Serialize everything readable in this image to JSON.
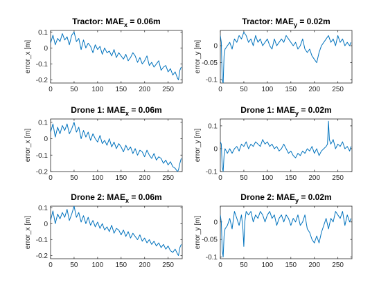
{
  "figure": {
    "background": "#ffffff",
    "line_color": "#0072bd",
    "axis_color": "#262626"
  },
  "chart_data": [
    {
      "type": "line",
      "title": {
        "prefix": "Tractor: MAE",
        "sub": "x",
        "suffix": " = 0.06m"
      },
      "ylabel": "error_x [m]",
      "xlim": [
        0,
        280
      ],
      "ylim": [
        -0.22,
        0.11
      ],
      "xticks": [
        0,
        50,
        100,
        150,
        200,
        250
      ],
      "yticks": [
        0.1,
        0,
        -0.1,
        -0.2
      ],
      "grid": false,
      "series": [
        {
          "x": [
            0,
            5,
            10,
            15,
            20,
            25,
            30,
            35,
            40,
            45,
            50,
            55,
            60,
            65,
            70,
            75,
            80,
            85,
            90,
            95,
            100,
            105,
            110,
            115,
            120,
            125,
            130,
            135,
            140,
            145,
            150,
            155,
            160,
            165,
            170,
            175,
            180,
            185,
            190,
            195,
            200,
            205,
            210,
            215,
            220,
            225,
            230,
            235,
            240,
            245,
            250,
            255,
            260,
            265,
            270,
            272,
            275,
            278
          ],
          "y": [
            0.03,
            0.08,
            0.02,
            0.06,
            0.04,
            0.09,
            0.05,
            0.07,
            0.02,
            0.08,
            0.1,
            0.04,
            0.06,
            -0.01,
            0.05,
            0.0,
            0.03,
            0.01,
            -0.03,
            0.02,
            -0.01,
            0.01,
            -0.04,
            0.0,
            -0.03,
            -0.02,
            -0.05,
            -0.01,
            -0.06,
            -0.03,
            -0.05,
            -0.07,
            -0.04,
            -0.08,
            -0.06,
            -0.03,
            -0.05,
            -0.09,
            -0.06,
            -0.1,
            -0.08,
            -0.05,
            -0.11,
            -0.09,
            -0.12,
            -0.1,
            -0.08,
            -0.14,
            -0.12,
            -0.11,
            -0.15,
            -0.13,
            -0.17,
            -0.15,
            -0.19,
            -0.2,
            -0.14,
            -0.12
          ]
        }
      ]
    },
    {
      "type": "line",
      "title": {
        "prefix": "Tractor: MAE",
        "sub": "y",
        "suffix": " = 0.02m"
      },
      "ylabel": "error_y [m]",
      "xlim": [
        0,
        280
      ],
      "ylim": [
        -0.11,
        0.045
      ],
      "xticks": [
        0,
        50,
        100,
        150,
        200,
        250
      ],
      "yticks": [
        0,
        -0.05,
        -0.1
      ],
      "grid": false,
      "series": [
        {
          "x": [
            0,
            2,
            4,
            6,
            8,
            10,
            15,
            20,
            25,
            30,
            35,
            40,
            45,
            50,
            55,
            60,
            65,
            70,
            75,
            80,
            85,
            90,
            95,
            100,
            105,
            110,
            115,
            120,
            125,
            130,
            135,
            140,
            145,
            150,
            155,
            160,
            165,
            170,
            175,
            180,
            185,
            190,
            195,
            200,
            205,
            210,
            215,
            220,
            225,
            230,
            235,
            240,
            245,
            250,
            255,
            260,
            265,
            270,
            275,
            278
          ],
          "y": [
            0.03,
            0.01,
            -0.1,
            -0.11,
            -0.03,
            -0.01,
            0.0,
            0.01,
            -0.01,
            0.02,
            0.01,
            0.03,
            0.02,
            0.04,
            0.03,
            0.01,
            0.02,
            0.0,
            0.03,
            0.01,
            0.02,
            0.0,
            0.01,
            0.02,
            0.0,
            -0.01,
            0.02,
            0.0,
            0.01,
            0.02,
            0.01,
            0.03,
            0.02,
            0.01,
            0.0,
            0.01,
            -0.01,
            0.0,
            0.02,
            -0.01,
            -0.02,
            -0.01,
            -0.03,
            -0.04,
            -0.05,
            -0.02,
            0.0,
            0.01,
            0.02,
            0.03,
            0.01,
            0.02,
            0.0,
            0.03,
            0.01,
            0.02,
            0.0,
            0.01,
            0.0,
            0.01
          ]
        }
      ]
    },
    {
      "type": "line",
      "title": {
        "prefix": "Drone 1: MAE",
        "sub": "x",
        "suffix": " = 0.06m"
      },
      "ylabel": "error_x [m]",
      "xlim": [
        0,
        280
      ],
      "ylim": [
        -0.2,
        0.12
      ],
      "xticks": [
        0,
        50,
        100,
        150,
        200,
        250
      ],
      "yticks": [
        0.1,
        0,
        -0.1,
        -0.2
      ],
      "grid": false,
      "series": [
        {
          "x": [
            0,
            5,
            10,
            15,
            20,
            25,
            30,
            35,
            40,
            45,
            50,
            55,
            60,
            65,
            70,
            75,
            80,
            85,
            90,
            95,
            100,
            105,
            110,
            115,
            120,
            125,
            130,
            135,
            140,
            145,
            150,
            155,
            160,
            165,
            170,
            175,
            180,
            185,
            190,
            195,
            200,
            205,
            210,
            215,
            220,
            225,
            230,
            235,
            240,
            245,
            250,
            255,
            260,
            265,
            270,
            272,
            275,
            278
          ],
          "y": [
            0.04,
            0.09,
            0.01,
            0.07,
            0.03,
            0.08,
            0.05,
            0.09,
            0.03,
            0.06,
            0.1,
            0.04,
            0.07,
            0.0,
            0.05,
            0.01,
            0.04,
            -0.01,
            0.03,
            0.0,
            -0.02,
            0.02,
            -0.03,
            -0.01,
            -0.04,
            0.0,
            -0.05,
            -0.02,
            -0.06,
            -0.03,
            -0.05,
            -0.08,
            -0.04,
            -0.07,
            -0.05,
            -0.09,
            -0.06,
            -0.1,
            -0.07,
            -0.08,
            -0.11,
            -0.07,
            -0.1,
            -0.12,
            -0.09,
            -0.13,
            -0.11,
            -0.12,
            -0.15,
            -0.13,
            -0.16,
            -0.14,
            -0.17,
            -0.18,
            -0.2,
            -0.19,
            -0.15,
            -0.12
          ]
        }
      ]
    },
    {
      "type": "line",
      "title": {
        "prefix": "Drone 1: MAE",
        "sub": "y",
        "suffix": " = 0.02m"
      },
      "ylabel": "error_y [m]",
      "xlim": [
        0,
        280
      ],
      "ylim": [
        -0.1,
        0.13
      ],
      "xticks": [
        0,
        50,
        100,
        150,
        200,
        250
      ],
      "yticks": [
        0.1,
        0,
        -0.1
      ],
      "grid": false,
      "series": [
        {
          "x": [
            0,
            2,
            4,
            6,
            8,
            10,
            15,
            20,
            25,
            30,
            35,
            40,
            45,
            50,
            55,
            60,
            65,
            70,
            75,
            80,
            85,
            90,
            95,
            100,
            105,
            110,
            115,
            120,
            125,
            130,
            135,
            140,
            145,
            150,
            155,
            160,
            165,
            170,
            175,
            180,
            185,
            190,
            195,
            200,
            205,
            210,
            215,
            220,
            225,
            228,
            230,
            232,
            235,
            240,
            245,
            250,
            255,
            260,
            265,
            270,
            275,
            278
          ],
          "y": [
            0.03,
            0.02,
            -0.08,
            -0.1,
            -0.03,
            0.0,
            -0.02,
            0.0,
            -0.02,
            0.0,
            0.01,
            -0.01,
            0.02,
            0.01,
            0.03,
            0.0,
            0.02,
            0.01,
            0.03,
            0.02,
            0.01,
            0.04,
            0.02,
            0.03,
            0.01,
            0.02,
            0.0,
            0.01,
            -0.01,
            0.0,
            0.02,
            0.0,
            -0.02,
            -0.01,
            -0.03,
            -0.04,
            -0.02,
            -0.03,
            -0.01,
            -0.02,
            0.0,
            -0.01,
            0.01,
            -0.02,
            0.0,
            -0.03,
            -0.01,
            0.0,
            0.01,
            0.02,
            0.12,
            0.04,
            0.02,
            0.04,
            0.0,
            0.02,
            0.01,
            0.03,
            0.0,
            0.01,
            -0.01,
            0.01
          ]
        }
      ]
    },
    {
      "type": "line",
      "title": {
        "prefix": "Drone 2: MAE",
        "sub": "x",
        "suffix": " = 0.06m"
      },
      "ylabel": "error_x [m]",
      "xlim": [
        0,
        280
      ],
      "ylim": [
        -0.22,
        0.11
      ],
      "xticks": [
        0,
        50,
        100,
        150,
        200,
        250
      ],
      "yticks": [
        0.1,
        0,
        -0.1,
        -0.2
      ],
      "grid": false,
      "series": [
        {
          "x": [
            0,
            5,
            10,
            15,
            20,
            25,
            30,
            35,
            40,
            45,
            50,
            55,
            60,
            65,
            70,
            75,
            80,
            85,
            90,
            95,
            100,
            105,
            110,
            115,
            120,
            125,
            130,
            135,
            140,
            145,
            150,
            155,
            160,
            165,
            170,
            175,
            180,
            185,
            190,
            195,
            200,
            205,
            210,
            215,
            220,
            225,
            230,
            235,
            240,
            245,
            250,
            255,
            260,
            265,
            270,
            272,
            275,
            278
          ],
          "y": [
            0.02,
            0.08,
            0.0,
            0.06,
            0.03,
            0.07,
            0.04,
            0.09,
            0.02,
            0.06,
            0.11,
            0.04,
            0.07,
            0.01,
            0.05,
            0.0,
            0.04,
            -0.01,
            0.02,
            -0.02,
            0.01,
            -0.03,
            0.0,
            -0.04,
            -0.02,
            -0.05,
            -0.01,
            -0.06,
            -0.03,
            -0.04,
            -0.07,
            -0.04,
            -0.08,
            -0.05,
            -0.09,
            -0.06,
            -0.08,
            -0.1,
            -0.07,
            -0.11,
            -0.09,
            -0.12,
            -0.1,
            -0.13,
            -0.11,
            -0.14,
            -0.12,
            -0.15,
            -0.13,
            -0.16,
            -0.14,
            -0.17,
            -0.18,
            -0.16,
            -0.19,
            -0.2,
            -0.15,
            -0.13
          ]
        }
      ]
    },
    {
      "type": "line",
      "title": {
        "prefix": "Drone 2: MAE",
        "sub": "y",
        "suffix": " = 0.02m"
      },
      "ylabel": "error_y [m]",
      "xlim": [
        0,
        280
      ],
      "ylim": [
        -0.105,
        0.045
      ],
      "xticks": [
        0,
        50,
        100,
        150,
        200,
        250
      ],
      "yticks": [
        0,
        -0.05,
        -0.1
      ],
      "grid": false,
      "series": [
        {
          "x": [
            0,
            2,
            4,
            6,
            8,
            10,
            15,
            20,
            25,
            30,
            35,
            40,
            45,
            48,
            50,
            52,
            55,
            60,
            65,
            70,
            75,
            80,
            85,
            90,
            95,
            100,
            105,
            110,
            115,
            120,
            125,
            130,
            135,
            140,
            145,
            150,
            155,
            160,
            165,
            170,
            175,
            180,
            185,
            190,
            195,
            200,
            205,
            210,
            215,
            220,
            225,
            230,
            235,
            240,
            245,
            250,
            255,
            260,
            265,
            270,
            275,
            278
          ],
          "y": [
            0.02,
            0.0,
            -0.08,
            -0.1,
            -0.04,
            -0.02,
            -0.01,
            0.01,
            -0.02,
            0.03,
            0.01,
            -0.01,
            0.02,
            -0.02,
            -0.07,
            0.0,
            0.03,
            0.02,
            0.03,
            0.0,
            0.02,
            0.01,
            0.03,
            0.02,
            0.0,
            0.02,
            0.03,
            0.01,
            0.02,
            -0.01,
            0.01,
            0.02,
            0.0,
            0.02,
            0.01,
            -0.01,
            0.01,
            0.0,
            0.02,
            -0.01,
            0.0,
            0.02,
            -0.02,
            -0.03,
            -0.05,
            -0.06,
            -0.04,
            -0.06,
            -0.03,
            -0.01,
            0.01,
            -0.02,
            0.01,
            0.0,
            0.03,
            0.02,
            0.01,
            0.03,
            -0.01,
            0.02,
            0.0,
            0.01
          ]
        }
      ]
    }
  ]
}
